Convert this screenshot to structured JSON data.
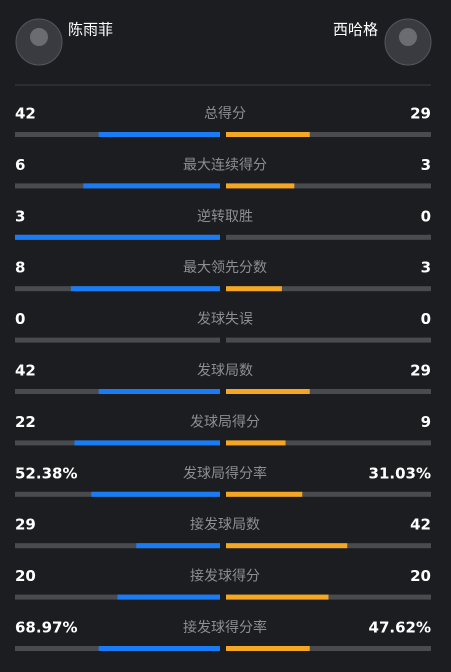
{
  "header": {
    "left_player": "陈雨菲",
    "right_player": "西哈格"
  },
  "rows": [
    {
      "label": "总得分",
      "left": 42,
      "right": 29
    },
    {
      "label": "最大连续得分",
      "left": 6,
      "right": 3
    },
    {
      "label": "逆转取胜",
      "left": 3,
      "right": 0
    },
    {
      "label": "最大领先分数",
      "left": 8,
      "right": 3
    },
    {
      "label": "发球失误",
      "left": 0,
      "right": 0
    },
    {
      "label": "发球局数",
      "left": 42,
      "right": 29
    },
    {
      "label": "发球局得分",
      "left": 22,
      "right": 9
    },
    {
      "label": "发球局得分率",
      "left": 52.38,
      "left_label": "52.38%",
      "right": 31.03,
      "right_label": "31.03%"
    },
    {
      "label": "接发球局数",
      "left": 29,
      "right": 42
    },
    {
      "label": "接发球得分",
      "left": 20,
      "right": 20
    },
    {
      "label": "接发球得分率",
      "left": 68.97,
      "left_label": "68.97%",
      "right": 47.62,
      "right_label": "47.62%"
    }
  ],
  "colors": {
    "left": "#1a7cf5",
    "right": "#f5a623",
    "track": "#4a4b4f"
  }
}
